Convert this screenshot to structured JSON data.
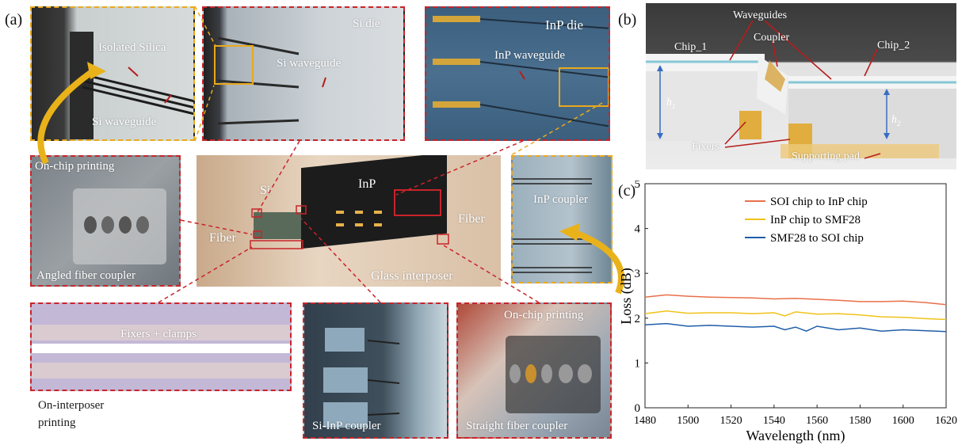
{
  "panels": {
    "a": "(a)",
    "b": "(b)",
    "c": "(c)"
  },
  "photos": {
    "isolated_silica": {
      "title": "Isolated Silica",
      "sub": "Si waveguide"
    },
    "si_die": {
      "title": "Si die",
      "sub": "Si waveguide"
    },
    "inp_die": {
      "title": "InP die",
      "sub": "InP waveguide"
    },
    "angled": {
      "top": "On-chip printing",
      "caption": "Angled fiber coupler"
    },
    "center": {
      "si": "Si",
      "inp": "InP",
      "fiber_left": "Fiber",
      "fiber_right": "Fiber",
      "glass": "Glass interposer"
    },
    "inp_coupler": {
      "caption": "InP coupler"
    },
    "fixers": {
      "caption": "Fixers + clamps"
    },
    "on_interposer": {
      "line1": "On-interposer",
      "line2": "printing"
    },
    "si_inp": {
      "caption": "Si-InP coupler"
    },
    "straight": {
      "top": "On-chip printing",
      "caption": "Straight fiber coupler"
    }
  },
  "schematic": {
    "waveguides": "Waveguides",
    "chip1": "Chip_1",
    "coupler": "Coupler",
    "chip2": "Chip_2",
    "h1": "h",
    "h1_sub": "1",
    "h2": "h",
    "h2_sub": "2",
    "fixers": "Fixers",
    "supporting_pad": "Supporting pad"
  },
  "chart_data": {
    "type": "line",
    "xlabel": "Wavelength (nm)",
    "ylabel": "Loss (dB)",
    "xlim": [
      1480,
      1620
    ],
    "ylim": [
      0,
      5
    ],
    "xticks": [
      "1480",
      "1500",
      "1520",
      "1540",
      "1560",
      "1580",
      "1600",
      "1620"
    ],
    "yticks": [
      "0",
      "1",
      "2",
      "3",
      "4",
      "5"
    ],
    "legend_position": "top-right",
    "series": [
      {
        "name": "SOI chip to InP chip",
        "color": "#e8704a",
        "x": [
          1480,
          1490,
          1500,
          1510,
          1520,
          1530,
          1540,
          1550,
          1560,
          1570,
          1580,
          1590,
          1600,
          1610,
          1620
        ],
        "y": [
          2.47,
          2.52,
          2.49,
          2.47,
          2.46,
          2.45,
          2.43,
          2.44,
          2.42,
          2.4,
          2.37,
          2.37,
          2.38,
          2.35,
          2.3
        ]
      },
      {
        "name": "InP chip to SMF28",
        "color": "#f0c21a",
        "x": [
          1480,
          1490,
          1500,
          1510,
          1520,
          1530,
          1540,
          1545,
          1550,
          1560,
          1570,
          1580,
          1590,
          1600,
          1610,
          1620
        ],
        "y": [
          2.1,
          2.16,
          2.11,
          2.12,
          2.12,
          2.1,
          2.12,
          2.05,
          2.14,
          2.09,
          2.1,
          2.07,
          2.03,
          2.02,
          1.99,
          1.97
        ]
      },
      {
        "name": "SMF28 to SOI chip",
        "color": "#1f5ea8",
        "x": [
          1480,
          1490,
          1500,
          1510,
          1520,
          1530,
          1540,
          1545,
          1550,
          1555,
          1560,
          1570,
          1580,
          1590,
          1600,
          1610,
          1620
        ],
        "y": [
          1.85,
          1.88,
          1.82,
          1.84,
          1.82,
          1.8,
          1.82,
          1.74,
          1.8,
          1.71,
          1.82,
          1.74,
          1.78,
          1.71,
          1.74,
          1.72,
          1.7
        ]
      }
    ]
  }
}
